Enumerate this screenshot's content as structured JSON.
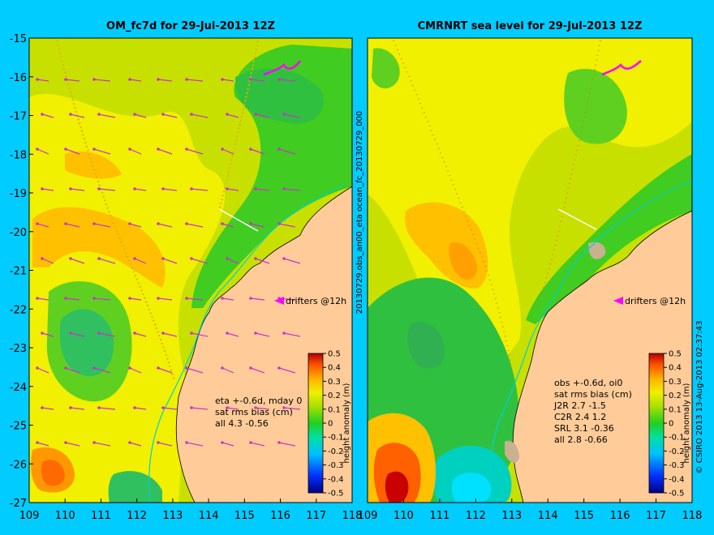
{
  "chart_data": [
    {
      "type": "heatmap",
      "title": "OM_fc7d for 29-Jul-2013 12Z",
      "xlim": [
        109,
        118
      ],
      "ylim": [
        -27,
        -15
      ],
      "xticks": [
        "109",
        "110",
        "111",
        "112",
        "113",
        "114",
        "115",
        "116",
        "117",
        "118"
      ],
      "yticks": [
        "-15",
        "-16",
        "-17",
        "-18",
        "-19",
        "-20",
        "-21",
        "-22",
        "-23",
        "-24",
        "-25",
        "-26",
        "-27"
      ],
      "drifter_label": "drifters @12h",
      "stats": [
        "eta +-0.6d, mday 0",
        "sat rms bias (cm)",
        "all 4.3 -0.56"
      ],
      "colorbar": {
        "label": "height anomaly (m)",
        "ticks": [
          "0.5",
          "0.4",
          "0.3",
          "0.2",
          "0.1",
          "0",
          "-0.1",
          "-0.2",
          "-0.3",
          "-0.4",
          "-0.5"
        ],
        "range": [
          -0.5,
          0.5
        ]
      }
    },
    {
      "type": "heatmap",
      "title": "CMRNRT sea level  for 29-Jul-2013 12Z",
      "xlim": [
        109,
        118
      ],
      "ylim": [
        -27,
        -15
      ],
      "xticks": [
        "109",
        "110",
        "111",
        "112",
        "113",
        "114",
        "115",
        "116",
        "117",
        "118"
      ],
      "drifter_label": "drifters @12h",
      "stats": [
        "obs +-0.6d, oi0",
        "sat rms bias (cm)",
        "J2R   2.7 -1.5",
        "C2R   2.4 1.2",
        "SRL   3.1 -0.36",
        "all   2.8 -0.66"
      ],
      "colorbar": {
        "label": "height anomaly (m)",
        "ticks": [
          "0.5",
          "0.4",
          "0.3",
          "0.2",
          "0.1",
          "0",
          "-0.1",
          "-0.2",
          "-0.3",
          "-0.4",
          "-0.5"
        ],
        "range": [
          -0.5,
          0.5
        ]
      }
    }
  ],
  "side_label": "20130729.obs_an00_eta        ocean_fc_20130729_000",
  "credit": "© CSIRO 2013   13-Aug-2013 02:37:43",
  "colors": {
    "background": "#00ccff",
    "land": "#ffcc99",
    "arrow": "#cc33cc",
    "coast_line": "#00d0d0"
  }
}
